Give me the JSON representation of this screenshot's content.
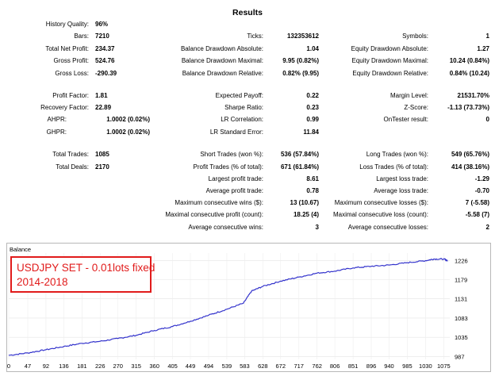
{
  "results_title": "Results",
  "stats": {
    "history_quality": {
      "label": "History Quality:",
      "value": "96%"
    },
    "bars": {
      "label": "Bars:",
      "value": "7210"
    },
    "ticks": {
      "label": "Ticks:",
      "value": "132353612"
    },
    "symbols": {
      "label": "Symbols:",
      "value": "1"
    },
    "total_net_profit": {
      "label": "Total Net Profit:",
      "value": "234.37"
    },
    "balance_dd_abs": {
      "label": "Balance Drawdown Absolute:",
      "value": "1.04"
    },
    "equity_dd_abs": {
      "label": "Equity Drawdown Absolute:",
      "value": "1.27"
    },
    "gross_profit": {
      "label": "Gross Profit:",
      "value": "524.76"
    },
    "balance_dd_max": {
      "label": "Balance Drawdown Maximal:",
      "value": "9.95 (0.82%)"
    },
    "equity_dd_max": {
      "label": "Equity Drawdown Maximal:",
      "value": "10.24 (0.84%)"
    },
    "gross_loss": {
      "label": "Gross Loss:",
      "value": "-290.39"
    },
    "balance_dd_rel": {
      "label": "Balance Drawdown Relative:",
      "value": "0.82% (9.95)"
    },
    "equity_dd_rel": {
      "label": "Equity Drawdown Relative:",
      "value": "0.84% (10.24)"
    },
    "profit_factor": {
      "label": "Profit Factor:",
      "value": "1.81"
    },
    "expected_payoff": {
      "label": "Expected Payoff:",
      "value": "0.22"
    },
    "margin_level": {
      "label": "Margin Level:",
      "value": "21531.70%"
    },
    "recovery_factor": {
      "label": "Recovery Factor:",
      "value": "22.89"
    },
    "sharpe_ratio": {
      "label": "Sharpe Ratio:",
      "value": "0.23"
    },
    "z_score": {
      "label": "Z-Score:",
      "value": "-1.13 (73.73%)"
    },
    "ahpr": {
      "label": "AHPR:",
      "value": "1.0002 (0.02%)"
    },
    "lr_correlation": {
      "label": "LR Correlation:",
      "value": "0.99"
    },
    "ontester_result": {
      "label": "OnTester result:",
      "value": "0"
    },
    "ghpr": {
      "label": "GHPR:",
      "value": "1.0002 (0.02%)"
    },
    "lr_std_error": {
      "label": "LR Standard Error:",
      "value": "11.84"
    },
    "total_trades": {
      "label": "Total Trades:",
      "value": "1085"
    },
    "short_trades": {
      "label": "Short Trades (won %):",
      "value": "536 (57.84%)"
    },
    "long_trades": {
      "label": "Long Trades (won %):",
      "value": "549 (65.76%)"
    },
    "total_deals": {
      "label": "Total Deals:",
      "value": "2170"
    },
    "profit_trades": {
      "label": "Profit Trades (% of total):",
      "value": "671 (61.84%)"
    },
    "loss_trades": {
      "label": "Loss Trades (% of total):",
      "value": "414 (38.16%)"
    },
    "largest_profit": {
      "label": "Largest profit trade:",
      "value": "8.61"
    },
    "largest_loss": {
      "label": "Largest loss trade:",
      "value": "-1.29"
    },
    "avg_profit": {
      "label": "Average profit trade:",
      "value": "0.78"
    },
    "avg_loss": {
      "label": "Average loss trade:",
      "value": "-0.70"
    },
    "max_consec_wins": {
      "label": "Maximum consecutive wins ($):",
      "value": "13 (10.67)"
    },
    "max_consec_losses": {
      "label": "Maximum consecutive losses ($):",
      "value": "7 (-5.58)"
    },
    "maximal_consec_profit": {
      "label": "Maximal consecutive profit (count):",
      "value": "18.25 (4)"
    },
    "maximal_consec_loss": {
      "label": "Maximal consecutive loss (count):",
      "value": "-5.58 (7)"
    },
    "avg_consec_wins": {
      "label": "Average consecutive wins:",
      "value": "3"
    },
    "avg_consec_losses": {
      "label": "Average consecutive losses:",
      "value": "2"
    }
  },
  "annotation": {
    "line1": "USDJPY SET - 0.01lots fixed",
    "line2": "2014-2018"
  },
  "chart_data": {
    "type": "line",
    "title": "Balance",
    "series": [
      {
        "color": "#3333cc"
      }
    ],
    "x_ticks": [
      "0",
      "47",
      "92",
      "136",
      "181",
      "226",
      "270",
      "315",
      "360",
      "405",
      "449",
      "494",
      "539",
      "583",
      "628",
      "672",
      "717",
      "762",
      "806",
      "851",
      "896",
      "940",
      "985",
      "1030",
      "1075"
    ],
    "y_ticks": [
      1226,
      1179,
      1131,
      1083,
      1035,
      987
    ],
    "xlim": [
      0,
      1090
    ],
    "ylim": [
      980,
      1245
    ],
    "grid": true,
    "balance_x": [
      0,
      47,
      92,
      136,
      181,
      226,
      270,
      315,
      360,
      405,
      449,
      494,
      539,
      580,
      600,
      628,
      672,
      717,
      762,
      806,
      851,
      896,
      940,
      985,
      1030,
      1050,
      1075,
      1085
    ],
    "balance_y": [
      990,
      996,
      1004,
      1012,
      1020,
      1025,
      1032,
      1040,
      1052,
      1062,
      1075,
      1090,
      1105,
      1120,
      1150,
      1162,
      1175,
      1185,
      1195,
      1200,
      1208,
      1212,
      1215,
      1221,
      1226,
      1230,
      1230,
      1226
    ]
  }
}
